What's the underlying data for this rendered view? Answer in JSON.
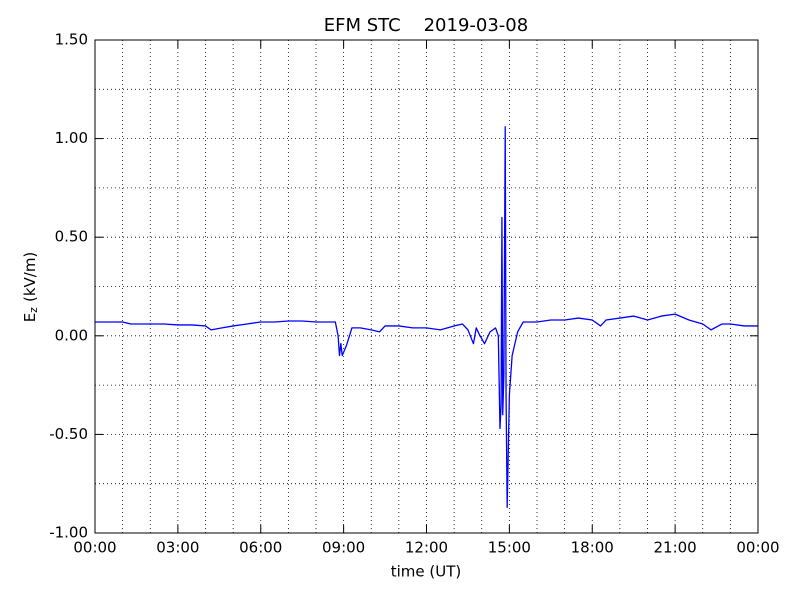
{
  "chart_data": {
    "type": "line",
    "title": "EFM STC    2019-03-08",
    "xlabel": "time (UT)",
    "ylabel": [
      "E",
      "z",
      "(kV/m)"
    ],
    "color": "#0000ff",
    "grid": true,
    "xlim": [
      0,
      24
    ],
    "ylim": [
      -1,
      1.5
    ],
    "xticks": [
      {
        "value": 0,
        "label": "00:00"
      },
      {
        "value": 3,
        "label": "03:00"
      },
      {
        "value": 6,
        "label": "06:00"
      },
      {
        "value": 9,
        "label": "09:00"
      },
      {
        "value": 12,
        "label": "12:00"
      },
      {
        "value": 15,
        "label": "15:00"
      },
      {
        "value": 18,
        "label": "18:00"
      },
      {
        "value": 21,
        "label": "21:00"
      },
      {
        "value": 24,
        "label": "00:00"
      }
    ],
    "yticks": [
      {
        "value": -1,
        "label": "-1.00"
      },
      {
        "value": -0.5,
        "label": "-0.50"
      },
      {
        "value": 0,
        "label": "0.00"
      },
      {
        "value": 0.5,
        "label": "0.50"
      },
      {
        "value": 1,
        "label": "1.00"
      },
      {
        "value": 1.5,
        "label": "1.50"
      }
    ],
    "xminorticks": [
      1,
      2,
      4,
      5,
      7,
      8,
      10,
      11,
      13,
      14,
      16,
      17,
      19,
      20,
      22,
      23
    ],
    "yminorticks": [
      -0.75,
      -0.25,
      0.25,
      0.75,
      1.25
    ],
    "x": [
      0,
      0.5,
      1,
      1.3,
      2,
      2.5,
      3,
      3.5,
      4,
      4.2,
      4.6,
      5,
      5.5,
      6,
      6.5,
      7,
      7.5,
      8,
      8.5,
      8.7,
      8.8,
      8.85,
      8.9,
      8.95,
      9.1,
      9.3,
      9.6,
      10,
      10.3,
      10.5,
      11,
      11.5,
      12,
      12.5,
      13,
      13.3,
      13.5,
      13.7,
      13.8,
      13.9,
      14.1,
      14.3,
      14.5,
      14.6,
      14.66,
      14.7,
      14.73,
      14.76,
      14.8,
      14.85,
      14.88,
      14.92,
      15.0,
      15.1,
      15.3,
      15.5,
      16,
      16.5,
      17,
      17.5,
      18,
      18.3,
      18.5,
      19,
      19.5,
      20,
      20.5,
      21,
      21.5,
      22,
      22.3,
      22.7,
      23,
      23.5,
      24
    ],
    "values": [
      0.07,
      0.07,
      0.07,
      0.06,
      0.06,
      0.06,
      0.055,
      0.055,
      0.05,
      0.03,
      0.04,
      0.05,
      0.06,
      0.07,
      0.07,
      0.075,
      0.075,
      0.07,
      0.07,
      0.07,
      0.0,
      -0.1,
      -0.04,
      -0.1,
      -0.05,
      0.04,
      0.04,
      0.03,
      0.02,
      0.05,
      0.05,
      0.04,
      0.04,
      0.03,
      0.05,
      0.06,
      0.03,
      -0.04,
      0.04,
      0.01,
      -0.04,
      0.02,
      0.04,
      0.0,
      -0.47,
      -0.35,
      0.6,
      -0.4,
      -0.2,
      1.06,
      -0.3,
      -0.87,
      -0.3,
      -0.1,
      0.02,
      0.07,
      0.07,
      0.08,
      0.08,
      0.09,
      0.08,
      0.05,
      0.08,
      0.09,
      0.1,
      0.08,
      0.1,
      0.11,
      0.08,
      0.06,
      0.03,
      0.06,
      0.06,
      0.05,
      0.05
    ]
  }
}
